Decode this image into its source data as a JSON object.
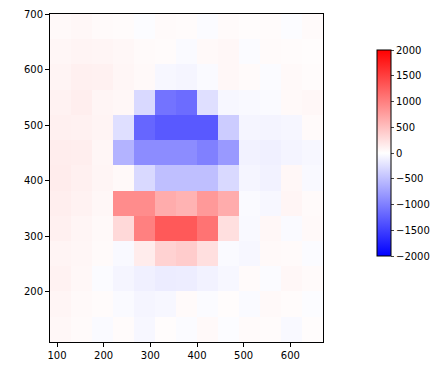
{
  "chart_data": {
    "type": "heatmap",
    "x": [
      107.5,
      152.5,
      197.5,
      242.5,
      287.5,
      332.5,
      377.5,
      422.5,
      467.5,
      512.5,
      557.5,
      602.5,
      647.5
    ],
    "y": [
      132.7,
      178.1,
      223.5,
      268.9,
      314.3,
      359.7,
      405.1,
      450.5,
      495.9,
      541.3,
      586.7,
      632.1,
      677.5
    ],
    "z": [
      [
        60,
        40,
        -40,
        30,
        -60,
        20,
        -30,
        50,
        -20,
        40,
        30,
        -50,
        20
      ],
      [
        80,
        50,
        30,
        -40,
        -80,
        -60,
        40,
        -30,
        20,
        -40,
        50,
        30,
        -20
      ],
      [
        100,
        60,
        -30,
        -80,
        -120,
        -150,
        -140,
        -100,
        -60,
        40,
        -30,
        60,
        40
      ],
      [
        90,
        70,
        40,
        -50,
        150,
        350,
        400,
        250,
        -40,
        -60,
        50,
        40,
        -30
      ],
      [
        120,
        80,
        50,
        300,
        1000,
        1300,
        1300,
        1100,
        250,
        -50,
        60,
        -40,
        50
      ],
      [
        130,
        100,
        60,
        900,
        900,
        650,
        600,
        800,
        650,
        -40,
        -60,
        80,
        40
      ],
      [
        150,
        120,
        80,
        50,
        -300,
        -500,
        -500,
        -500,
        -300,
        -80,
        -100,
        60,
        -50
      ],
      [
        140,
        130,
        70,
        -600,
        -900,
        -900,
        -900,
        -1000,
        -800,
        -100,
        -120,
        -90,
        -60
      ],
      [
        120,
        110,
        90,
        -250,
        -1200,
        -1300,
        -1300,
        -1300,
        -400,
        -80,
        -90,
        -70,
        40
      ],
      [
        100,
        130,
        80,
        60,
        -300,
        -1100,
        -1150,
        -250,
        -60,
        -50,
        -40,
        50,
        60
      ],
      [
        90,
        120,
        110,
        70,
        50,
        -60,
        -80,
        -40,
        60,
        40,
        -30,
        50,
        30
      ],
      [
        70,
        90,
        80,
        60,
        40,
        30,
        -40,
        50,
        60,
        -30,
        40,
        30,
        20
      ],
      [
        50,
        60,
        40,
        30,
        -20,
        40,
        30,
        -30,
        40,
        20,
        30,
        -20,
        40
      ]
    ],
    "xlim": [
      85,
      670
    ],
    "ylim": [
      110,
      700
    ],
    "xticks": [
      100,
      200,
      300,
      400,
      500,
      600
    ],
    "yticks": [
      200,
      300,
      400,
      500,
      600,
      700
    ],
    "color_range": [
      -2000,
      2000
    ],
    "color_ticks": [
      {
        "value": -2000,
        "label": "−2000"
      },
      {
        "value": -1500,
        "label": "−1500"
      },
      {
        "value": -1000,
        "label": "−1000"
      },
      {
        "value": -500,
        "label": "−500"
      },
      0,
      500,
      1000,
      1500,
      2000
    ]
  }
}
